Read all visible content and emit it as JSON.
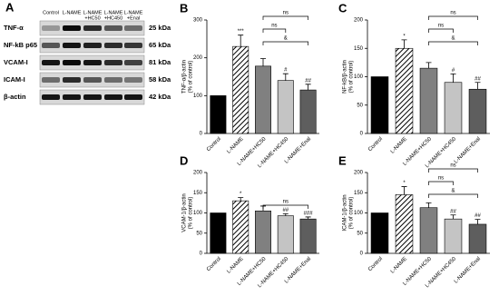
{
  "blot": {
    "panel": "A",
    "lanes": [
      [
        "Control"
      ],
      [
        "L-NAME"
      ],
      [
        "L-NAME",
        "+HC50"
      ],
      [
        "L-NAME",
        "+HC450"
      ],
      [
        "L-NAME",
        "+Enal"
      ]
    ],
    "proteins": [
      "TNF-α",
      "NF-kB p65",
      "VCAM-I",
      "ICAM-I",
      "β-actin"
    ],
    "sizes": [
      "25 kDa",
      "65 kDa",
      "81 kDa",
      "58 kDa",
      "42 kDa"
    ]
  },
  "chart_data": [
    {
      "type": "bar",
      "panel": "B",
      "ylabel": [
        "TNF-α/β-actin",
        "(% of control)"
      ],
      "categories": [
        "Control",
        "L-NAME",
        "L-NAME+HC50",
        "L-NAME+HC450",
        "L-NAME+Enal"
      ],
      "values": [
        100,
        230,
        178,
        140,
        115
      ],
      "errors": [
        null,
        30,
        20,
        18,
        15
      ],
      "colors": [
        "#000000",
        "#ffffff",
        "#808080",
        "#c4c4c4",
        "#5e5e5e"
      ],
      "hatched": [
        false,
        true,
        false,
        false,
        false
      ],
      "annotations": [
        null,
        "***",
        null,
        "#",
        "##"
      ],
      "brackets": [
        {
          "from": "L-NAME+HC50",
          "to": "L-NAME+Enal",
          "label": "ns"
        },
        {
          "from": "L-NAME+HC50",
          "to": "L-NAME+HC450",
          "label": "ns"
        },
        {
          "from": "L-NAME+HC50",
          "to": "L-NAME+Enal",
          "label": "&"
        }
      ],
      "ylim": [
        0,
        300
      ],
      "yticks": [
        0,
        100,
        200,
        300
      ]
    },
    {
      "type": "bar",
      "panel": "C",
      "ylabel": [
        "NF-kB/β-actin",
        "(% of control)"
      ],
      "categories": [
        "Control",
        "L-NAME",
        "L-NAME+HC50",
        "L-NAME+HC450",
        "L-NAME+Enal"
      ],
      "values": [
        100,
        150,
        115,
        90,
        78
      ],
      "errors": [
        null,
        15,
        10,
        15,
        12
      ],
      "colors": [
        "#000000",
        "#ffffff",
        "#808080",
        "#c4c4c4",
        "#5e5e5e"
      ],
      "hatched": [
        false,
        true,
        false,
        false,
        false
      ],
      "annotations": [
        null,
        "*",
        null,
        "#",
        "##"
      ],
      "brackets": [
        {
          "from": "L-NAME+HC50",
          "to": "L-NAME+Enal",
          "label": "ns"
        },
        {
          "from": "L-NAME+HC50",
          "to": "L-NAME+HC450",
          "label": "ns"
        },
        {
          "from": "L-NAME+HC50",
          "to": "L-NAME+Enal",
          "label": "&"
        }
      ],
      "ylim": [
        0,
        200
      ],
      "yticks": [
        0,
        50,
        100,
        150,
        200
      ]
    },
    {
      "type": "bar",
      "panel": "D",
      "ylabel": [
        "VCAM-1/β-actin",
        "(% of control)"
      ],
      "categories": [
        "Control",
        "L-NAME",
        "L-NAME+HC50",
        "L-NAME+HC450",
        "L-NAME+Enal"
      ],
      "values": [
        100,
        130,
        105,
        93,
        85
      ],
      "errors": [
        null,
        8,
        12,
        5,
        5
      ],
      "colors": [
        "#000000",
        "#ffffff",
        "#808080",
        "#c4c4c4",
        "#5e5e5e"
      ],
      "hatched": [
        false,
        true,
        false,
        false,
        false
      ],
      "annotations": [
        null,
        "*",
        null,
        "##",
        "###"
      ],
      "brackets": [
        {
          "from": "L-NAME+HC50",
          "to": "L-NAME+Enal",
          "label": "ns"
        }
      ],
      "ylim": [
        0,
        200
      ],
      "yticks": [
        0,
        50,
        100,
        150,
        200
      ]
    },
    {
      "type": "bar",
      "panel": "E",
      "ylabel": [
        "ICAM-1/β-actin",
        "(% of control)"
      ],
      "categories": [
        "Control",
        "L-NAME",
        "L-NAME+HC50",
        "L-NAME+HC450",
        "L-NAME+Enal"
      ],
      "values": [
        100,
        145,
        113,
        85,
        72
      ],
      "errors": [
        null,
        20,
        12,
        10,
        12
      ],
      "colors": [
        "#000000",
        "#ffffff",
        "#808080",
        "#c4c4c4",
        "#5e5e5e"
      ],
      "hatched": [
        false,
        true,
        false,
        false,
        false
      ],
      "annotations": [
        null,
        "*",
        null,
        "##",
        "##"
      ],
      "brackets": [
        {
          "from": "L-NAME+HC50",
          "to": "L-NAME+Enal",
          "label": "ns"
        },
        {
          "from": "L-NAME+HC50",
          "to": "L-NAME+HC450",
          "label": "ns"
        },
        {
          "from": "L-NAME+HC50",
          "to": "L-NAME+Enal",
          "label": "&"
        }
      ],
      "ylim": [
        0,
        200
      ],
      "yticks": [
        0,
        50,
        100,
        150,
        200
      ]
    }
  ]
}
